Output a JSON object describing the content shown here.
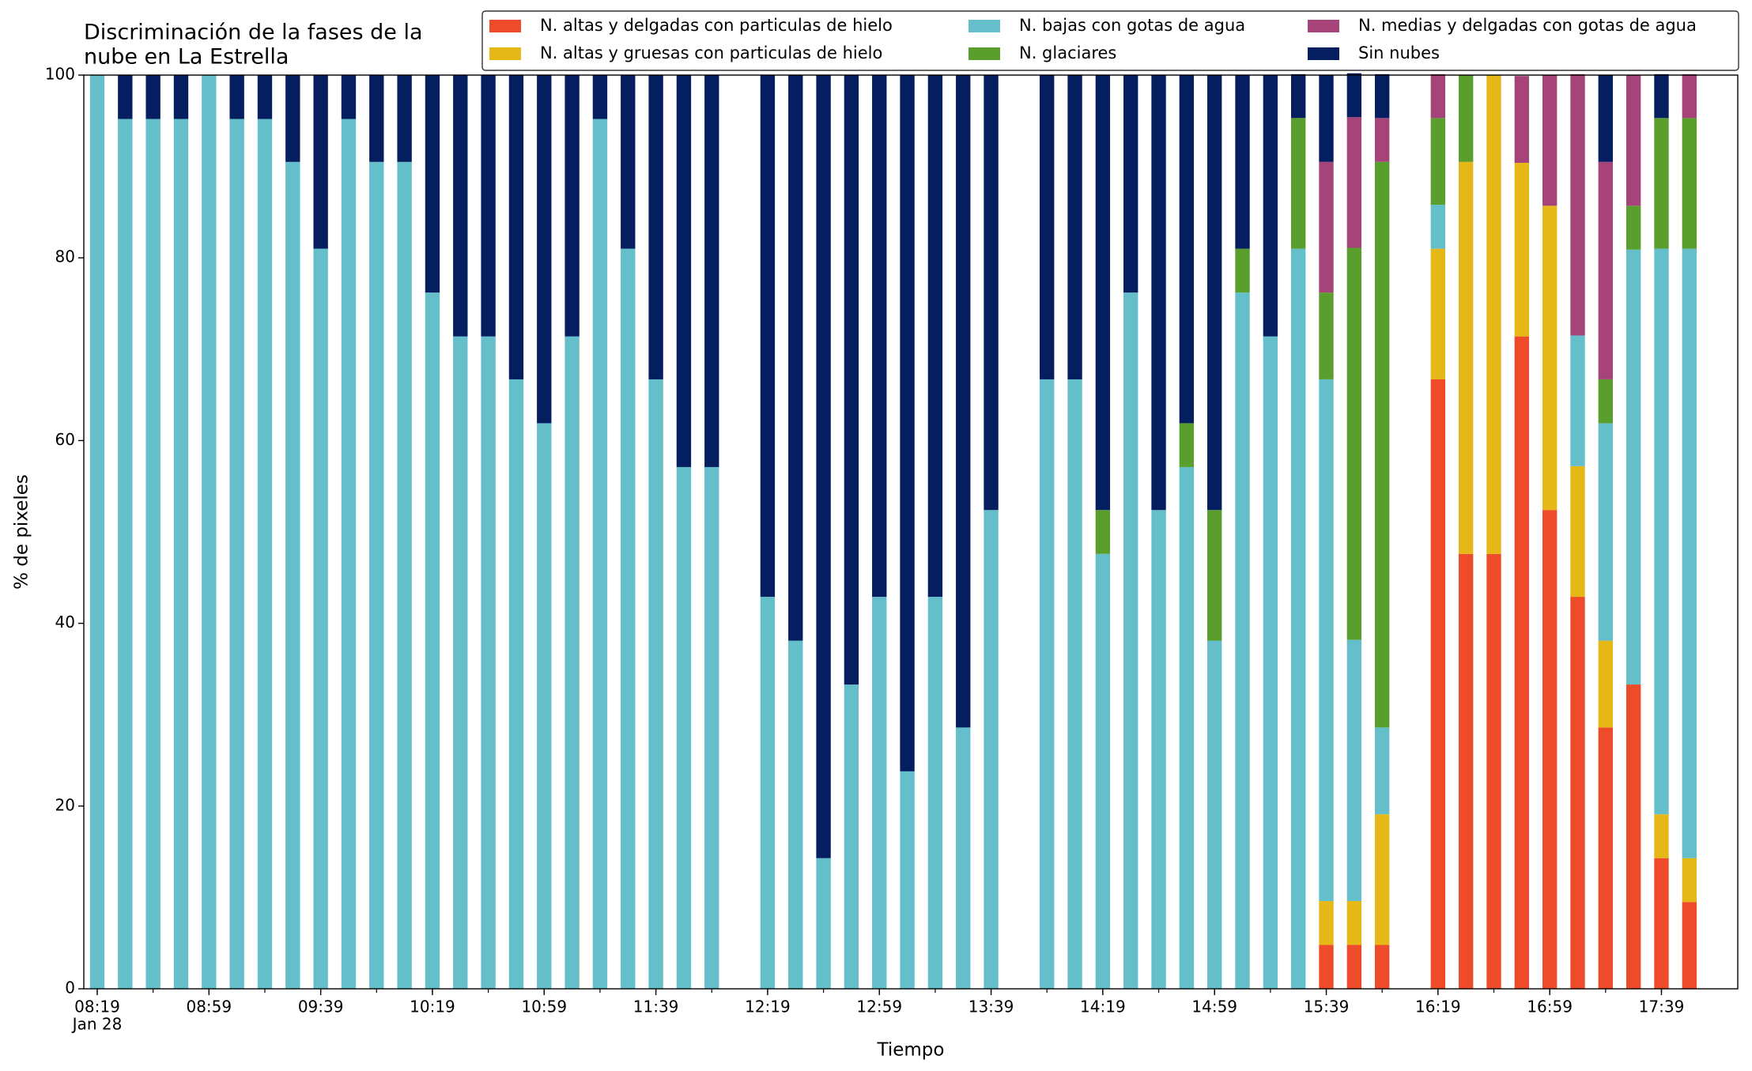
{
  "chart_data": {
    "type": "stacked_bar",
    "title": [
      "Discriminación de la fases de la",
      "nube en La Estrella"
    ],
    "xlabel": "Tiempo",
    "ylabel": "% de pixeles",
    "x": [
      "08:19",
      "08:29",
      "08:39",
      "08:49",
      "08:59",
      "09:09",
      "09:19",
      "09:29",
      "09:39",
      "09:49",
      "09:59",
      "10:09",
      "10:19",
      "10:29",
      "10:39",
      "10:49",
      "10:59",
      "11:09",
      "11:19",
      "11:29",
      "11:39",
      "11:49",
      "11:59",
      "12:09",
      "12:19",
      "12:29",
      "12:39",
      "12:49",
      "12:59",
      "13:09",
      "13:19",
      "13:29",
      "13:39",
      "13:49",
      "13:59",
      "14:09",
      "14:19",
      "14:29",
      "14:39",
      "14:49",
      "14:59",
      "15:09",
      "15:19",
      "15:29",
      "15:39",
      "15:49",
      "15:59",
      "16:09",
      "16:19",
      "16:29",
      "16:39",
      "16:49",
      "16:59",
      "17:09",
      "17:19",
      "17:29",
      "17:39",
      "17:49"
    ],
    "x_date_label": "Jan 28",
    "xticks": [
      "08:19",
      "08:59",
      "09:39",
      "10:19",
      "10:59",
      "11:39",
      "12:19",
      "12:59",
      "13:39",
      "14:19",
      "14:59",
      "15:39",
      "16:19",
      "16:59",
      "17:39"
    ],
    "ylim": [
      0,
      100
    ],
    "yticks": [
      0,
      20,
      40,
      60,
      80,
      100
    ],
    "legend": "upper right",
    "series": [
      {
        "name": "N. altas y delgadas con particulas de hielo",
        "color": "#ee4b2b",
        "values": [
          0,
          0,
          0,
          0,
          0,
          0,
          0,
          0,
          0,
          0,
          0,
          0,
          0,
          0,
          0,
          0,
          0,
          0,
          0,
          0,
          0,
          0,
          0,
          null,
          0,
          0,
          0,
          0,
          0,
          0,
          0,
          0,
          0,
          null,
          0,
          0,
          0,
          0,
          0,
          0,
          0,
          0,
          0,
          0,
          4.8,
          4.8,
          4.8,
          null,
          66.7,
          47.6,
          47.6,
          71.4,
          52.4,
          42.9,
          28.6,
          33.3,
          14.3,
          9.5
        ]
      },
      {
        "name": "N. altas y gruesas con particulas de hielo",
        "color": "#e6b817",
        "values": [
          0,
          0,
          0,
          0,
          0,
          0,
          0,
          0,
          0,
          0,
          0,
          0,
          0,
          0,
          0,
          0,
          0,
          0,
          0,
          0,
          0,
          0,
          0,
          null,
          0,
          0,
          0,
          0,
          0,
          0,
          0,
          0,
          0,
          null,
          0,
          0,
          0,
          0,
          0,
          0,
          0,
          0,
          0,
          0,
          4.8,
          4.8,
          14.3,
          null,
          14.3,
          42.9,
          52.4,
          19,
          33.3,
          14.3,
          9.5,
          0,
          4.8,
          4.8
        ]
      },
      {
        "name": "N. bajas con gotas de agua",
        "color": "#64bfca",
        "values": [
          100,
          95.2,
          95.2,
          95.2,
          100,
          95.2,
          95.2,
          90.5,
          81,
          95.2,
          90.5,
          90.5,
          76.2,
          71.4,
          71.4,
          66.7,
          61.9,
          71.4,
          95.2,
          81,
          66.7,
          57.1,
          57.1,
          null,
          42.9,
          38.1,
          14.3,
          33.3,
          42.9,
          23.8,
          42.9,
          28.6,
          52.4,
          null,
          66.7,
          66.7,
          47.6,
          76.2,
          52.4,
          57.1,
          38.1,
          76.2,
          71.4,
          81,
          57.1,
          28.6,
          9.5,
          null,
          4.8,
          0,
          0,
          0,
          0,
          14.3,
          23.8,
          47.6,
          61.9,
          66.7
        ]
      },
      {
        "name": "N. glaciares",
        "color": "#5a9e2e",
        "values": [
          0,
          0,
          0,
          0,
          0,
          0,
          0,
          0,
          0,
          0,
          0,
          0,
          0,
          0,
          0,
          0,
          0,
          0,
          0,
          0,
          0,
          0,
          0,
          null,
          0,
          0,
          0,
          0,
          0,
          0,
          0,
          0,
          0,
          null,
          0,
          0,
          4.8,
          0,
          0,
          4.8,
          14.3,
          4.8,
          0,
          14.3,
          9.5,
          42.9,
          61.9,
          null,
          9.5,
          9.5,
          0,
          0,
          0,
          0,
          4.8,
          4.8,
          14.3,
          14.3
        ]
      },
      {
        "name": "N. medias y delgadas con gotas de agua",
        "color": "#a6447a",
        "values": [
          0,
          0,
          0,
          0,
          0,
          0,
          0,
          0,
          0,
          0,
          0,
          0,
          0,
          0,
          0,
          0,
          0,
          0,
          0,
          0,
          0,
          0,
          0,
          null,
          0,
          0,
          0,
          0,
          0,
          0,
          0,
          0,
          0,
          null,
          0,
          0,
          0,
          0,
          0,
          0,
          0,
          0,
          0,
          0,
          14.3,
          14.3,
          4.8,
          null,
          4.8,
          0,
          0,
          9.5,
          14.3,
          28.6,
          23.8,
          14.3,
          0,
          4.8
        ]
      },
      {
        "name": "Sin nubes",
        "color": "#041e60",
        "values": [
          0,
          4.8,
          4.8,
          4.8,
          0,
          4.8,
          4.8,
          9.5,
          19,
          4.8,
          9.5,
          9.5,
          23.8,
          28.6,
          28.6,
          33.3,
          38.1,
          28.6,
          4.8,
          19,
          33.3,
          42.9,
          42.9,
          null,
          57.1,
          61.9,
          85.7,
          66.7,
          57.1,
          76.2,
          57.1,
          71.4,
          47.6,
          null,
          33.3,
          33.3,
          47.6,
          23.8,
          47.6,
          38.1,
          47.6,
          19,
          28.6,
          4.8,
          9.5,
          4.8,
          4.8,
          null,
          0,
          0,
          0,
          0,
          0,
          0,
          9.5,
          0,
          4.8,
          0
        ]
      }
    ]
  }
}
